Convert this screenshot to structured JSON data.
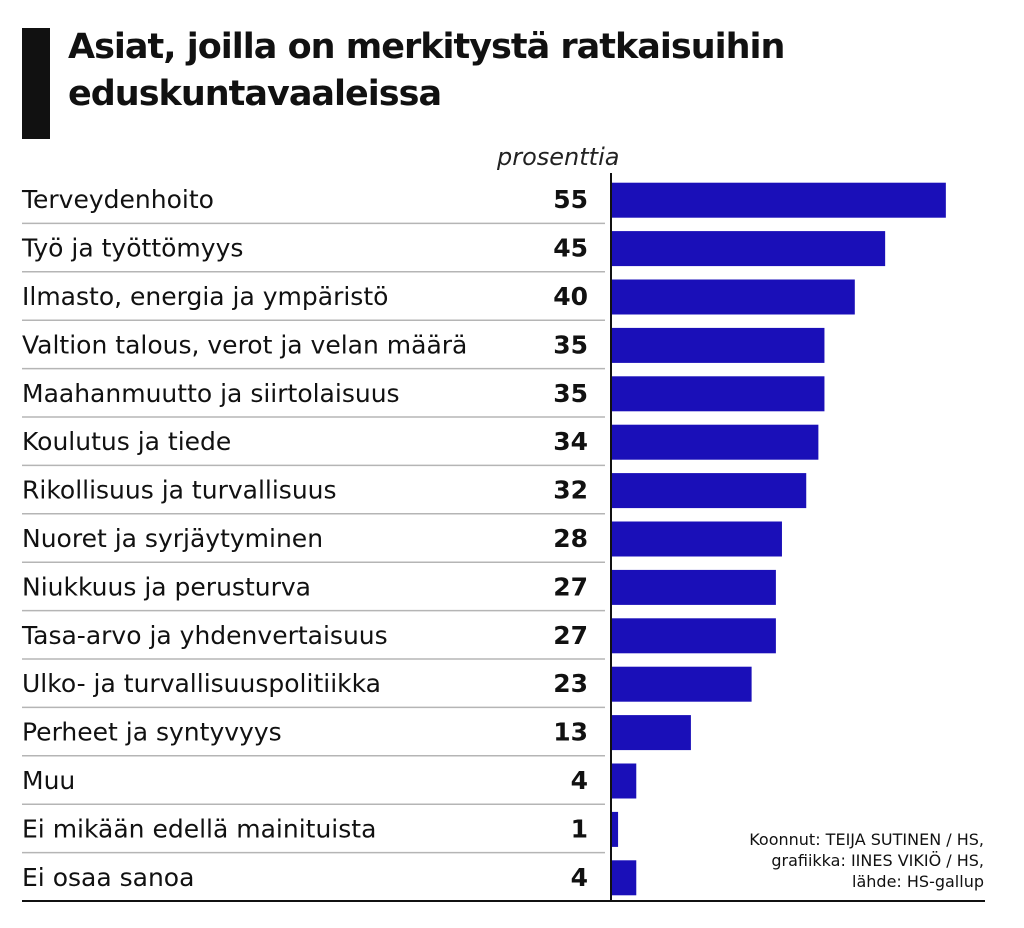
{
  "chart_data": {
    "type": "bar",
    "orientation": "horizontal",
    "title": "Asiat, joilla on merkitystä ratkaisuihin eduskuntavaaleissa",
    "unit_label": "prosenttia",
    "categories": [
      "Terveydenhoito",
      "Työ ja työttömyys",
      "Ilmasto, energia ja ympäristö",
      "Valtion talous, verot ja velan määrä",
      "Maahanmuutto ja siirtolaisuus",
      "Koulutus ja tiede",
      "Rikollisuus ja turvallisuus",
      "Nuoret ja syrjäytyminen",
      "Niukkuus ja perusturva",
      "Tasa-arvo ja yhdenvertaisuus",
      "Ulko- ja turvallisuuspolitiikka",
      "Perheet ja syntyvyys",
      "Muu",
      "Ei mikään edellä mainituista",
      "Ei osaa sanoa"
    ],
    "values": [
      55,
      45,
      40,
      35,
      35,
      34,
      32,
      28,
      27,
      27,
      23,
      13,
      4,
      1,
      4
    ],
    "bar_color": "#1a0fb8",
    "grid": false
  },
  "credits": [
    "Koonnut: TEIJA SUTINEN / HS,",
    "grafiikka: IINES VIKIÖ / HS,",
    "lähde: HS-gallup"
  ]
}
